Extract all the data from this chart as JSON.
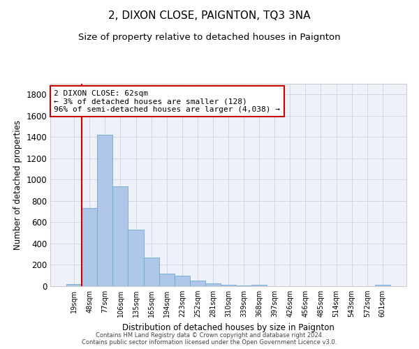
{
  "title": "2, DIXON CLOSE, PAIGNTON, TQ3 3NA",
  "subtitle": "Size of property relative to detached houses in Paignton",
  "xlabel": "Distribution of detached houses by size in Paignton",
  "ylabel": "Number of detached properties",
  "categories": [
    "19sqm",
    "48sqm",
    "77sqm",
    "106sqm",
    "135sqm",
    "165sqm",
    "194sqm",
    "223sqm",
    "252sqm",
    "281sqm",
    "310sqm",
    "339sqm",
    "368sqm",
    "397sqm",
    "426sqm",
    "456sqm",
    "485sqm",
    "514sqm",
    "543sqm",
    "572sqm",
    "601sqm"
  ],
  "values": [
    20,
    735,
    1420,
    935,
    530,
    270,
    115,
    100,
    50,
    25,
    15,
    5,
    10,
    3,
    2,
    2,
    1,
    1,
    0,
    0,
    10
  ],
  "bar_color": "#aec6e8",
  "bar_edgecolor": "#6aaad4",
  "vline_color": "#cc0000",
  "vline_x": 0.5,
  "annotation_text": "2 DIXON CLOSE: 62sqm\n← 3% of detached houses are smaller (128)\n96% of semi-detached houses are larger (4,038) →",
  "annotation_box_edgecolor": "#cc0000",
  "annotation_box_facecolor": "#ffffff",
  "ylim": [
    0,
    1900
  ],
  "yticks": [
    0,
    200,
    400,
    600,
    800,
    1000,
    1200,
    1400,
    1600,
    1800
  ],
  "title_fontsize": 11,
  "subtitle_fontsize": 9.5,
  "footer_text": "Contains HM Land Registry data © Crown copyright and database right 2024.\nContains public sector information licensed under the Open Government Licence v3.0.",
  "grid_color": "#d0d8e8",
  "background_color": "#eef2f8"
}
